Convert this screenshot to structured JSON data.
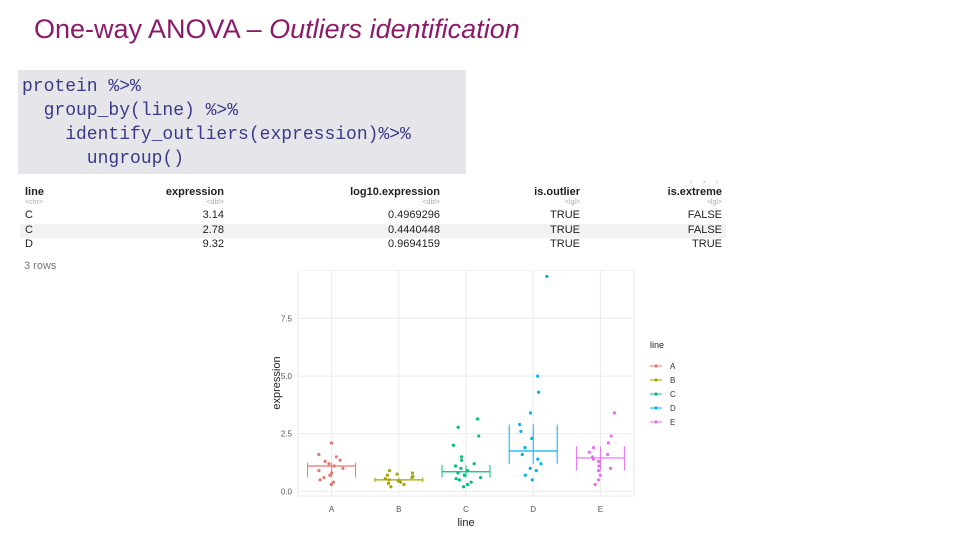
{
  "slide": {
    "title_main": "One-way ANOVA – ",
    "title_italic": "Outliers identification"
  },
  "code": {
    "lines": [
      "protein %>%",
      "  group_by(line) %>%",
      "    identify_outliers(expression)%>%",
      "      ungroup()"
    ]
  },
  "table": {
    "headers": [
      "line",
      "expression",
      "log10.expression",
      "is.outlier",
      "is.extreme"
    ],
    "types": [
      "<chr>",
      "<dbl>",
      "<dbl>",
      "<lgl>",
      "<lgl>"
    ],
    "rows": [
      [
        "C",
        "3.14",
        "0.4969296",
        "TRUE",
        "FALSE"
      ],
      [
        "C",
        "2.78",
        "0.4440448",
        "TRUE",
        "FALSE"
      ],
      [
        "D",
        "9.32",
        "0.9694159",
        "TRUE",
        "TRUE"
      ]
    ],
    "footer": "3 rows",
    "nav": "‹ › ›"
  },
  "colors": {
    "title": "#8b1a6b",
    "code_bg": "#e6e6ea",
    "code_text": "#3a3a8a"
  },
  "chart_data": {
    "type": "scatter",
    "xlabel": "line",
    "ylabel": "expression",
    "categories": [
      "A",
      "B",
      "C",
      "D",
      "E"
    ],
    "y_ticks": [
      "0.0",
      "2.5",
      "5.0",
      "7.5"
    ],
    "ylim": [
      -0.2,
      9.6
    ],
    "legend_title": "line",
    "legend_position": "right",
    "colors": [
      "#e8766d",
      "#a3a500",
      "#00bf7d",
      "#00b0f6",
      "#e76bf3"
    ],
    "errorbars": [
      {
        "line": "A",
        "mean": 1.1,
        "low": 0.6,
        "high": 1.25
      },
      {
        "line": "B",
        "mean": 0.5,
        "low": 0.4,
        "high": 0.6
      },
      {
        "line": "C",
        "mean": 0.85,
        "low": 0.6,
        "high": 1.15
      },
      {
        "line": "D",
        "mean": 1.75,
        "low": 1.2,
        "high": 2.9
      },
      {
        "line": "E",
        "mean": 1.45,
        "low": 0.9,
        "high": 1.95
      }
    ],
    "points": {
      "A": [
        0.3,
        0.4,
        0.5,
        0.6,
        0.7,
        0.8,
        0.9,
        1.0,
        1.1,
        1.2,
        1.3,
        1.35,
        1.5,
        1.6,
        2.1
      ],
      "B": [
        0.2,
        0.3,
        0.35,
        0.4,
        0.45,
        0.5,
        0.55,
        0.6,
        0.65,
        0.7,
        0.75,
        0.8,
        0.9
      ],
      "C": [
        0.2,
        0.3,
        0.4,
        0.5,
        0.55,
        0.6,
        0.7,
        0.8,
        0.9,
        1.0,
        1.1,
        1.2,
        1.35,
        1.5,
        2.0,
        2.4,
        2.78,
        3.14
      ],
      "D": [
        0.5,
        0.7,
        0.9,
        1.0,
        1.2,
        1.4,
        1.6,
        1.9,
        2.3,
        2.6,
        2.9,
        3.4,
        4.3,
        5.0,
        9.32
      ],
      "E": [
        0.3,
        0.5,
        0.7,
        0.9,
        1.0,
        1.1,
        1.3,
        1.4,
        1.5,
        1.6,
        1.7,
        1.9,
        2.1,
        2.4,
        3.4
      ]
    }
  }
}
